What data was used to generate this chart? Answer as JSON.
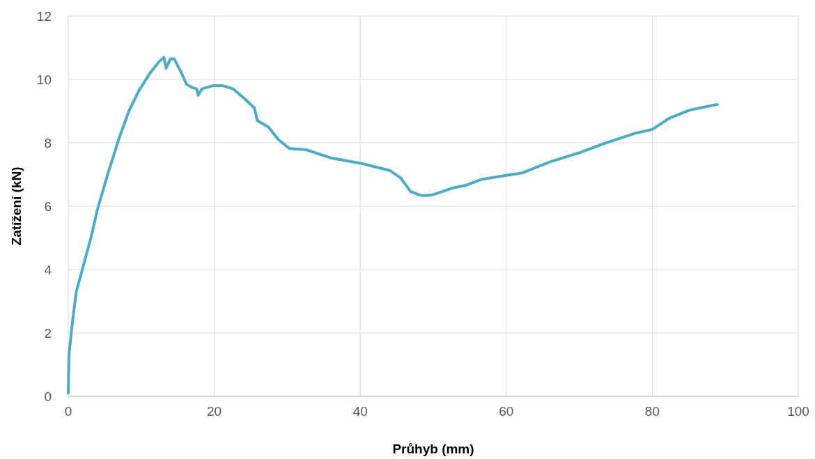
{
  "chart_data": {
    "type": "line",
    "xlabel": "Průhyb (mm)",
    "ylabel": "Zatížení (kN)",
    "xlim": [
      0,
      100
    ],
    "xticks": [
      0,
      20,
      40,
      60,
      80,
      100
    ],
    "ylim": [
      0,
      12
    ],
    "yticks": [
      0,
      2,
      4,
      6,
      8,
      10,
      12
    ],
    "grid": true,
    "marker": "none",
    "line_style": "solid",
    "series": [
      {
        "color": "#4bacc6",
        "x": [
          0,
          0.1,
          0.3,
          0.6,
          1.1,
          2.1,
          3.1,
          4.0,
          5.4,
          6.9,
          8.3,
          9.7,
          11.2,
          12.4,
          13.1,
          13.4,
          14.0,
          14.5,
          15.3,
          16.2,
          16.9,
          17.6,
          17.8,
          18.3,
          19.8,
          21.2,
          22.6,
          24.1,
          25.5,
          25.9,
          27.4,
          28.8,
          30.3,
          32.6,
          36.0,
          40.3,
          44.1,
          45.5,
          46.9,
          48.4,
          49.8,
          52.6,
          54.5,
          56.5,
          59.4,
          62.2,
          66.0,
          69.8,
          73.7,
          77.5,
          80.0,
          82.3,
          85.1,
          88.9
        ],
        "values": [
          0.1,
          1.3,
          1.75,
          2.4,
          3.3,
          4.15,
          5.0,
          5.9,
          7.0,
          8.1,
          9.0,
          9.65,
          10.2,
          10.55,
          10.7,
          10.35,
          10.65,
          10.65,
          10.3,
          9.85,
          9.75,
          9.7,
          9.5,
          9.7,
          9.8,
          9.8,
          9.7,
          9.4,
          9.1,
          8.7,
          8.5,
          8.1,
          7.82,
          7.78,
          7.52,
          7.34,
          7.12,
          6.9,
          6.46,
          6.33,
          6.35,
          6.57,
          6.66,
          6.84,
          6.95,
          7.05,
          7.4,
          7.67,
          8.0,
          8.29,
          8.42,
          8.77,
          9.03,
          9.21
        ]
      }
    ]
  }
}
